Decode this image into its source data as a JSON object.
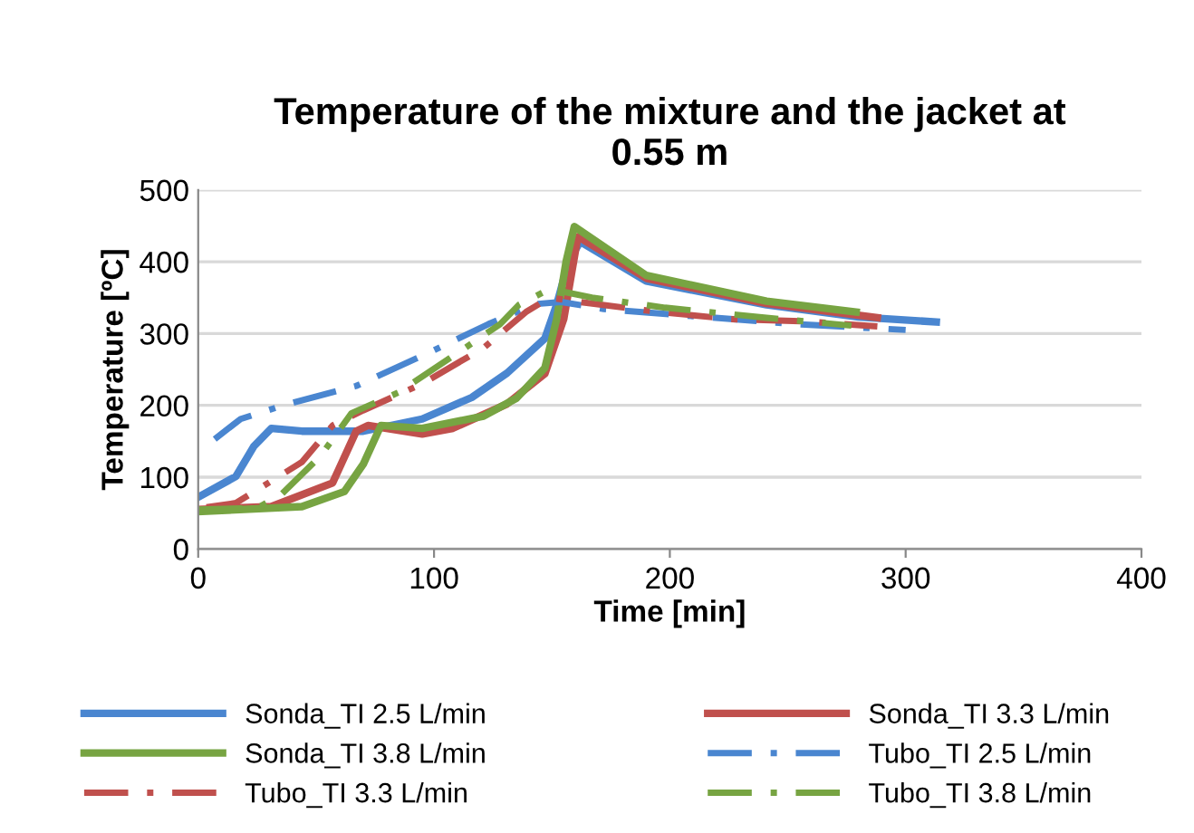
{
  "chart_data": {
    "type": "line",
    "title": "Temperature of the mixture and the jacket at\n0.55 m",
    "xlabel": "Time [min]",
    "ylabel": "Temperature [ºC]",
    "xlim": [
      0,
      400
    ],
    "xticks": [
      0,
      100,
      200,
      300,
      400
    ],
    "ylim": [
      0,
      500
    ],
    "yticks": [
      0,
      100,
      200,
      300,
      400,
      500
    ],
    "grid": "y",
    "legend": "bottom",
    "marker": "none",
    "series": [
      {
        "name": "Sonda_TI 2.5 L/min",
        "color": "#4a86d0",
        "line_style": "solid",
        "x": [
          0.5,
          16,
          23.6,
          31,
          44,
          70,
          95,
          116,
          131,
          147,
          152,
          157,
          162,
          190,
          241,
          280,
          313
        ],
        "values": [
          73,
          101,
          143,
          168,
          164,
          164,
          181,
          211,
          245,
          293,
          340,
          400,
          428,
          373,
          340,
          323,
          316
        ]
      },
      {
        "name": "Sonda_TI 3.3 L/min",
        "color": "#c0504d",
        "line_style": "solid",
        "x": [
          0,
          31,
          57,
          67,
          72,
          95,
          108,
          131,
          147,
          155,
          161,
          190,
          241,
          288
        ],
        "values": [
          55,
          59,
          92,
          164,
          172,
          160,
          168,
          202,
          244,
          320,
          435,
          377,
          342,
          322
        ]
      },
      {
        "name": "Sonda_TI 3.8 L/min",
        "color": "#77a442",
        "line_style": "solid",
        "x": [
          0,
          44,
          62,
          70,
          77.5,
          95,
          121,
          135,
          147,
          152,
          156,
          159.5,
          190,
          241,
          279
        ],
        "values": [
          52,
          59,
          80,
          118,
          172,
          168,
          185,
          210,
          252,
          320,
          400,
          449,
          381,
          345,
          330
        ]
      },
      {
        "name": "Tubo_TI 2.5 L/min",
        "color": "#4a86d0",
        "line_style": "dashed",
        "x": [
          7,
          18,
          36,
          67,
          95,
          123,
          143,
          154,
          172,
          203,
          254,
          300
        ],
        "values": [
          153,
          181,
          200,
          227,
          269,
          313,
          341,
          344,
          334,
          326,
          313,
          305
        ]
      },
      {
        "name": "Tubo_TI 3.3 L/min",
        "color": "#c0504d",
        "line_style": "dashed",
        "x": [
          3.5,
          16,
          44,
          57,
          70,
          95,
          121,
          139,
          149,
          164,
          193,
          226,
          257,
          288
        ],
        "values": [
          58,
          64,
          121,
          172,
          193,
          230,
          280,
          330,
          350,
          343,
          331,
          320,
          317,
          310
        ]
      },
      {
        "name": "Tubo_TI 3.8 L/min",
        "color": "#77a442",
        "line_style": "dashed",
        "x": [
          0,
          25,
          35,
          52,
          65,
          85,
          110,
          128,
          136,
          149,
          167,
          198,
          241,
          277
        ],
        "values": [
          55,
          57,
          75,
          130,
          189,
          218,
          273,
          313,
          340,
          362,
          350,
          336,
          322,
          311
        ]
      }
    ]
  }
}
